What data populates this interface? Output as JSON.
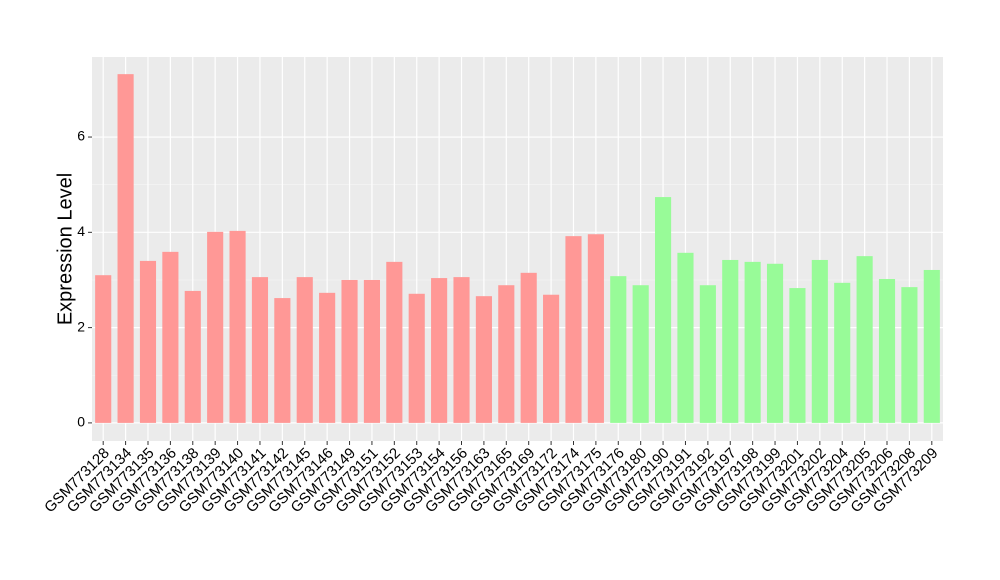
{
  "chart_data": {
    "type": "bar",
    "y_label": "Expression Level",
    "categories": [
      "GSM773128",
      "GSM773134",
      "GSM773135",
      "GSM773136",
      "GSM773138",
      "GSM773139",
      "GSM773140",
      "GSM773141",
      "GSM773142",
      "GSM773145",
      "GSM773146",
      "GSM773149",
      "GSM773151",
      "GSM773152",
      "GSM773153",
      "GSM773154",
      "GSM773156",
      "GSM773163",
      "GSM773165",
      "GSM773169",
      "GSM773172",
      "GSM773174",
      "GSM773175",
      "GSM773176",
      "GSM773180",
      "GSM773190",
      "GSM773191",
      "GSM773192",
      "GSM773197",
      "GSM773198",
      "GSM773199",
      "GSM773201",
      "GSM773202",
      "GSM773204",
      "GSM773205",
      "GSM773206",
      "GSM773208",
      "GSM773209"
    ],
    "values": [
      3.1,
      7.32,
      3.4,
      3.59,
      2.77,
      4.01,
      4.03,
      3.06,
      2.62,
      3.06,
      2.73,
      3.0,
      3.0,
      3.38,
      2.71,
      3.04,
      3.06,
      2.66,
      2.89,
      3.15,
      2.69,
      3.92,
      3.96,
      3.08,
      2.89,
      4.74,
      3.57,
      2.89,
      3.42,
      3.38,
      3.34,
      2.83,
      3.42,
      2.94,
      3.5,
      3.02,
      2.85,
      3.21
    ],
    "colors": [
      "#ff9896",
      "#ff9896",
      "#ff9896",
      "#ff9896",
      "#ff9896",
      "#ff9896",
      "#ff9896",
      "#ff9896",
      "#ff9896",
      "#ff9896",
      "#ff9896",
      "#ff9896",
      "#ff9896",
      "#ff9896",
      "#ff9896",
      "#ff9896",
      "#ff9896",
      "#ff9896",
      "#ff9896",
      "#ff9896",
      "#ff9896",
      "#ff9896",
      "#ff9896",
      "#98fb98",
      "#98fb98",
      "#98fb98",
      "#98fb98",
      "#98fb98",
      "#98fb98",
      "#98fb98",
      "#98fb98",
      "#98fb98",
      "#98fb98",
      "#98fb98",
      "#98fb98",
      "#98fb98",
      "#98fb98",
      "#98fb98"
    ],
    "ylim": [
      -0.38,
      7.68
    ],
    "yticks": [
      0,
      2,
      4,
      6
    ],
    "grid": true
  }
}
